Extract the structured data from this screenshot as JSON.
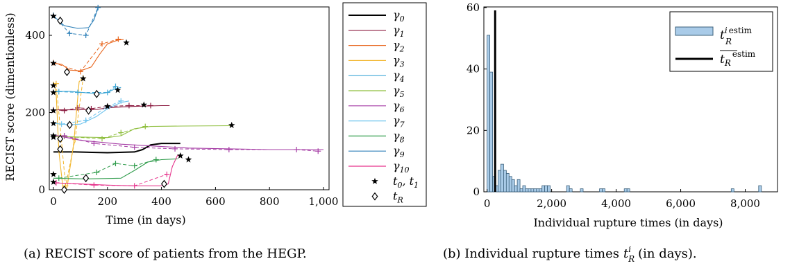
{
  "chart_data": [
    {
      "type": "line",
      "caption": "(a) RECIST score of patients from the HEGP.",
      "xlabel": "Time  (in days)",
      "ylabel": "RECIST score (dimentionless)",
      "xlim": [
        0,
        1000
      ],
      "ylim": [
        0,
        470
      ],
      "xticks": [
        "0",
        "200",
        "400",
        "600",
        "800",
        "1,000"
      ],
      "yticks": [
        "0",
        "200",
        "400"
      ],
      "legend_position": "right",
      "legend": [
        {
          "label": "γ0",
          "color": "#000000"
        },
        {
          "label": "γ1",
          "color": "#8b1a3f"
        },
        {
          "label": "γ2",
          "color": "#e8661e"
        },
        {
          "label": "γ3",
          "color": "#f2b62c"
        },
        {
          "label": "γ4",
          "color": "#3fa7d6"
        },
        {
          "label": "γ5",
          "color": "#8fbf3f"
        },
        {
          "label": "γ6",
          "color": "#a53ca5"
        },
        {
          "label": "γ7",
          "color": "#6cc3ee"
        },
        {
          "label": "γ8",
          "color": "#2e9b4a"
        },
        {
          "label": "γ9",
          "color": "#2c7fb8"
        },
        {
          "label": "γ10",
          "color": "#e6338c"
        },
        {
          "label": "t0, t1",
          "marker": "star"
        },
        {
          "label": "tR",
          "marker": "diamond"
        }
      ],
      "series": [
        {
          "name": "γ0",
          "color": "#000000",
          "fit": [
            [
              0,
              98
            ],
            [
              80,
              98
            ],
            [
              200,
              96
            ],
            [
              300,
              98
            ],
            [
              330,
              104
            ],
            [
              360,
              116
            ],
            [
              400,
              120
            ],
            [
              470,
              120
            ]
          ]
        },
        {
          "name": "γ1",
          "color": "#8b1a3f",
          "fit": [
            [
              0,
              207
            ],
            [
              80,
              207
            ],
            [
              160,
              208
            ],
            [
              200,
              212
            ],
            [
              240,
              214
            ],
            [
              300,
              216
            ],
            [
              400,
              218
            ],
            [
              430,
              218
            ]
          ],
          "obs": [
            [
              0,
              207
            ],
            [
              40,
              205
            ],
            [
              90,
              212
            ],
            [
              140,
              210
            ],
            [
              200,
              216
            ],
            [
              280,
              218
            ],
            [
              360,
              218
            ]
          ]
        },
        {
          "name": "γ2",
          "color": "#e8661e",
          "fit": [
            [
              0,
              328
            ],
            [
              30,
              325
            ],
            [
              60,
              310
            ],
            [
              100,
              308
            ],
            [
              140,
              318
            ],
            [
              170,
              350
            ],
            [
              200,
              378
            ],
            [
              240,
              388
            ],
            [
              260,
              389
            ]
          ],
          "obs": [
            [
              0,
              329
            ],
            [
              100,
              306
            ],
            [
              180,
              378
            ],
            [
              240,
              390
            ]
          ]
        },
        {
          "name": "γ3",
          "color": "#f2b62c",
          "fit": [
            [
              0,
              280
            ],
            [
              10,
              250
            ],
            [
              20,
              100
            ],
            [
              35,
              5
            ],
            [
              50,
              5
            ],
            [
              75,
              120
            ],
            [
              95,
              280
            ],
            [
              110,
              290
            ]
          ],
          "obs": [
            [
              10,
              275
            ],
            [
              45,
              10
            ],
            [
              80,
              130
            ],
            [
              110,
              290
            ]
          ]
        },
        {
          "name": "γ4",
          "color": "#3fa7d6",
          "fit": [
            [
              0,
              255
            ],
            [
              60,
              255
            ],
            [
              140,
              250
            ],
            [
              170,
              248
            ],
            [
              200,
              252
            ],
            [
              230,
              262
            ],
            [
              250,
              265
            ]
          ],
          "obs": [
            [
              20,
              254
            ],
            [
              90,
              252
            ],
            [
              200,
              252
            ],
            [
              230,
              268
            ]
          ]
        },
        {
          "name": "γ5",
          "color": "#8fbf3f",
          "fit": [
            [
              0,
              138
            ],
            [
              200,
              135
            ],
            [
              250,
              140
            ],
            [
              300,
              158
            ],
            [
              360,
              164
            ],
            [
              480,
              165
            ],
            [
              660,
              166
            ]
          ],
          "obs": [
            [
              40,
              138
            ],
            [
              180,
              132
            ],
            [
              250,
              148
            ],
            [
              340,
              164
            ]
          ]
        },
        {
          "name": "γ6",
          "color": "#a53ca5",
          "fit": [
            [
              0,
              142
            ],
            [
              100,
              128
            ],
            [
              250,
              118
            ],
            [
              500,
              108
            ],
            [
              800,
              104
            ],
            [
              1000,
              104
            ]
          ],
          "obs": [
            [
              40,
              140
            ],
            [
              150,
              120
            ],
            [
              300,
              110
            ],
            [
              450,
              106
            ],
            [
              650,
              104
            ],
            [
              900,
              104
            ],
            [
              980,
              100
            ]
          ]
        },
        {
          "name": "γ7",
          "color": "#6cc3ee",
          "fit": [
            [
              0,
              172
            ],
            [
              60,
              168
            ],
            [
              100,
              170
            ],
            [
              160,
              190
            ],
            [
              200,
              210
            ],
            [
              250,
              226
            ],
            [
              280,
              230
            ]
          ],
          "obs": [
            [
              30,
              170
            ],
            [
              120,
              180
            ],
            [
              200,
              215
            ],
            [
              250,
              230
            ]
          ]
        },
        {
          "name": "γ8",
          "color": "#2e9b4a",
          "fit": [
            [
              0,
              30
            ],
            [
              120,
              28
            ],
            [
              250,
              30
            ],
            [
              300,
              50
            ],
            [
              350,
              72
            ],
            [
              400,
              78
            ],
            [
              460,
              80
            ]
          ],
          "obs": [
            [
              20,
              30
            ],
            [
              160,
              45
            ],
            [
              230,
              68
            ],
            [
              300,
              62
            ],
            [
              380,
              78
            ]
          ]
        },
        {
          "name": "γ9",
          "color": "#2c7fb8",
          "fit": [
            [
              0,
              450
            ],
            [
              40,
              425
            ],
            [
              90,
              418
            ],
            [
              130,
              420
            ],
            [
              150,
              440
            ],
            [
              165,
              470
            ]
          ],
          "obs": [
            [
              0,
              452
            ],
            [
              60,
              405
            ],
            [
              120,
              400
            ],
            [
              165,
              472
            ]
          ]
        },
        {
          "name": "γ10",
          "color": "#e6338c",
          "fit": [
            [
              0,
              18
            ],
            [
              100,
              15
            ],
            [
              200,
              12
            ],
            [
              300,
              10
            ],
            [
              400,
              10
            ],
            [
              425,
              15
            ],
            [
              440,
              60
            ],
            [
              460,
              90
            ]
          ],
          "obs": [
            [
              10,
              18
            ],
            [
              150,
              12
            ],
            [
              300,
              10
            ],
            [
              420,
              40
            ]
          ]
        }
      ],
      "t0_t1": [
        [
          0,
          450
        ],
        [
          0,
          328
        ],
        [
          0,
          270
        ],
        [
          0,
          252
        ],
        [
          0,
          205
        ],
        [
          0,
          172
        ],
        [
          0,
          140
        ],
        [
          0,
          136
        ],
        [
          0,
          40
        ],
        [
          0,
          20
        ],
        [
          200,
          216
        ],
        [
          270,
          381
        ],
        [
          110,
          288
        ],
        [
          238,
          258
        ],
        [
          335,
          220
        ],
        [
          660,
          167
        ],
        [
          500,
          78
        ],
        [
          470,
          88
        ]
      ],
      "tR": [
        [
          25,
          438
        ],
        [
          50,
          305
        ],
        [
          40,
          0
        ],
        [
          160,
          248
        ],
        [
          130,
          205
        ],
        [
          60,
          168
        ],
        [
          25,
          132
        ],
        [
          25,
          105
        ],
        [
          120,
          30
        ],
        [
          410,
          15
        ]
      ]
    },
    {
      "type": "bar",
      "caption": "(b) Individual rupture times t_R^i (in days).",
      "xlabel": "Individual rupture times  (in days)",
      "ylabel": "",
      "xlim": [
        -100,
        9000
      ],
      "ylim": [
        0,
        60
      ],
      "xticks": [
        "0",
        "2,000",
        "4,000",
        "6,000",
        "8,000"
      ],
      "yticks": [
        "0",
        "20",
        "40",
        "60"
      ],
      "legend_position": "top-right",
      "legend": [
        {
          "label": "t_R^i estim",
          "kind": "bar",
          "color": "#a9cbe8"
        },
        {
          "label": "mean t_R estim",
          "kind": "line",
          "color": "#000000"
        }
      ],
      "bin_width": 85,
      "bins": [
        [
          0,
          51
        ],
        [
          85,
          39
        ],
        [
          170,
          5
        ],
        [
          255,
          2
        ],
        [
          340,
          7
        ],
        [
          425,
          9
        ],
        [
          510,
          7
        ],
        [
          595,
          6
        ],
        [
          680,
          5
        ],
        [
          765,
          4
        ],
        [
          850,
          2
        ],
        [
          935,
          4
        ],
        [
          1020,
          1
        ],
        [
          1105,
          2
        ],
        [
          1190,
          1
        ],
        [
          1275,
          1
        ],
        [
          1360,
          1
        ],
        [
          1445,
          1
        ],
        [
          1530,
          1
        ],
        [
          1615,
          1
        ],
        [
          1700,
          2
        ],
        [
          1785,
          2
        ],
        [
          1870,
          2
        ],
        [
          2465,
          2
        ],
        [
          2550,
          1
        ],
        [
          2890,
          1
        ],
        [
          3485,
          1
        ],
        [
          3570,
          1
        ],
        [
          4250,
          1
        ],
        [
          4335,
          1
        ],
        [
          7565,
          1
        ],
        [
          8415,
          2
        ]
      ],
      "mean": 250
    }
  ],
  "left": {
    "caption": "(a) RECIST score of patients from the HEGP.",
    "xlabel": "Time  (in days)",
    "ylabel": "RECIST score (dimentionless)",
    "xticks": [
      "0",
      "200",
      "400",
      "600",
      "800",
      "1,000"
    ],
    "yticks": [
      "0",
      "200",
      "400"
    ]
  },
  "right": {
    "caption": "(b) Individual rupture times",
    "caption_tail": "(in days).",
    "xlabel": "Individual rupture times  (in days)",
    "xticks": [
      "0",
      "2,000",
      "4,000",
      "6,000",
      "8,000"
    ],
    "yticks": [
      "0",
      "20",
      "40",
      "60"
    ]
  }
}
